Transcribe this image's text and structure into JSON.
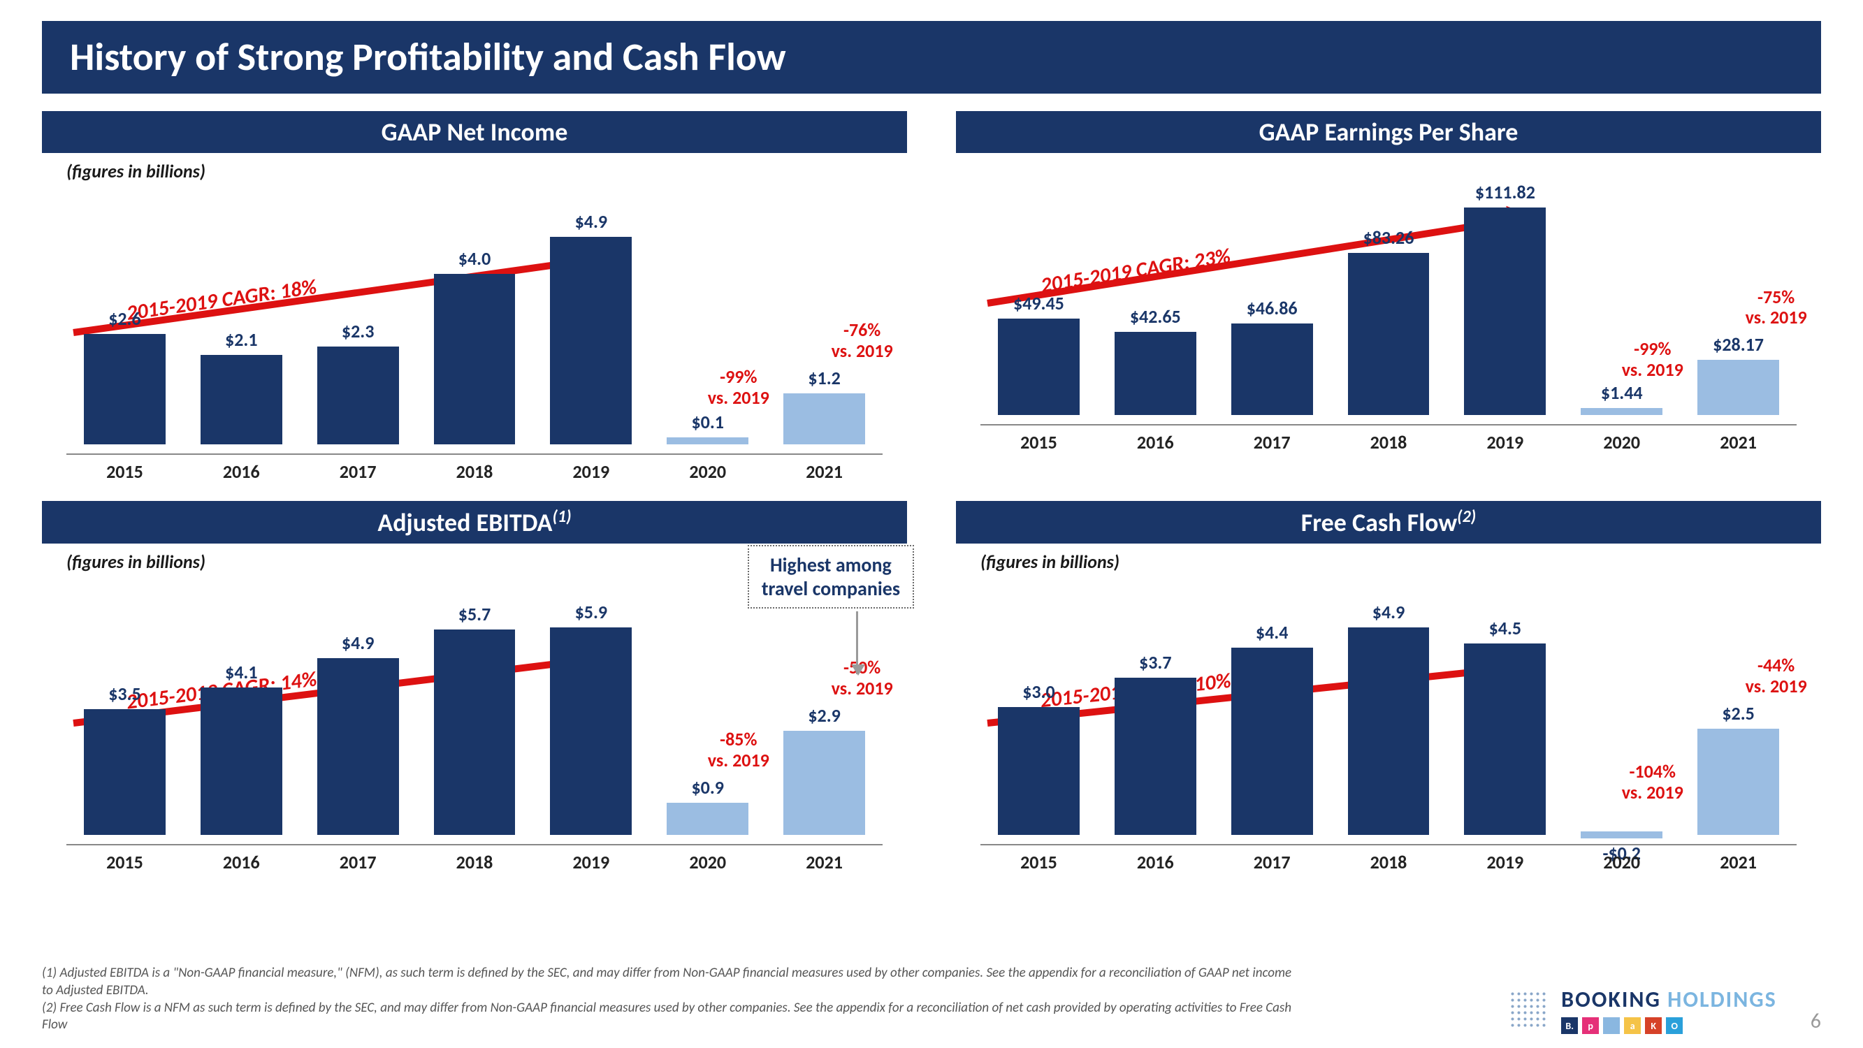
{
  "slide": {
    "title": "History of Strong Profitability and Cash Flow",
    "title_bg": "#1a3668",
    "title_color": "#ffffff",
    "page_number": "6"
  },
  "colors": {
    "bar_dark": "#1a3668",
    "bar_light": "#9bbde2",
    "accent_red": "#dd1111",
    "axis": "#888888",
    "text": "#1a1a1a"
  },
  "charts": [
    {
      "id": "net_income",
      "title": "GAAP Net Income",
      "subcaption": "(figures in billions)",
      "cagr_label": "2015-2019 CAGR: 18%",
      "cagr_angle": -8,
      "y_max": 5.5,
      "categories": [
        "2015",
        "2016",
        "2017",
        "2018",
        "2019",
        "2020",
        "2021"
      ],
      "value_labels": [
        "$2.6",
        "$2.1",
        "$2.3",
        "$4.0",
        "$4.9",
        "$0.1",
        "$1.2"
      ],
      "values": [
        2.6,
        2.1,
        2.3,
        4.0,
        4.9,
        0.1,
        1.2
      ],
      "bar_colors": [
        "#1a3668",
        "#1a3668",
        "#1a3668",
        "#1a3668",
        "#1a3668",
        "#9bbde2",
        "#9bbde2"
      ],
      "annotations": [
        {
          "over_index": 5,
          "lines": [
            "-99%",
            "vs. 2019"
          ]
        },
        {
          "over_index": 6,
          "lines": [
            "-76%",
            "vs. 2019"
          ]
        }
      ]
    },
    {
      "id": "eps",
      "title": "GAAP Earnings Per Share",
      "subcaption": "",
      "cagr_label": "2015-2019 CAGR: 23%",
      "cagr_angle": -9,
      "y_max": 120,
      "categories": [
        "2015",
        "2016",
        "2017",
        "2018",
        "2019",
        "2020",
        "2021"
      ],
      "value_labels": [
        "$49.45",
        "$42.65",
        "$46.86",
        "$83.26",
        "$111.82",
        "$1.44",
        "$28.17"
      ],
      "values": [
        49.45,
        42.65,
        46.86,
        83.26,
        111.82,
        1.44,
        28.17
      ],
      "bar_colors": [
        "#1a3668",
        "#1a3668",
        "#1a3668",
        "#1a3668",
        "#1a3668",
        "#9bbde2",
        "#9bbde2"
      ],
      "annotations": [
        {
          "over_index": 5,
          "lines": [
            "-99%",
            "vs. 2019"
          ]
        },
        {
          "over_index": 6,
          "lines": [
            "-75%",
            "vs. 2019"
          ]
        }
      ]
    },
    {
      "id": "ebitda",
      "title": "Adjusted EBITDA",
      "title_sup": "(1)",
      "subcaption": "(figures in billions)",
      "cagr_label": "2015-2019 CAGR: 14%",
      "cagr_angle": -7,
      "y_max": 6.5,
      "categories": [
        "2015",
        "2016",
        "2017",
        "2018",
        "2019",
        "2020",
        "2021"
      ],
      "value_labels": [
        "$3.5",
        "$4.1",
        "$4.9",
        "$5.7",
        "$5.9",
        "$0.9",
        "$2.9"
      ],
      "values": [
        3.5,
        4.1,
        4.9,
        5.7,
        5.9,
        0.9,
        2.9
      ],
      "bar_colors": [
        "#1a3668",
        "#1a3668",
        "#1a3668",
        "#1a3668",
        "#1a3668",
        "#9bbde2",
        "#9bbde2"
      ],
      "annotations": [
        {
          "over_index": 5,
          "lines": [
            "-85%",
            "vs. 2019"
          ]
        },
        {
          "over_index": 6,
          "lines": [
            "-50%",
            "vs. 2019"
          ]
        }
      ],
      "callout": {
        "text_line1": "Highest among",
        "text_line2": "travel companies",
        "points_to_index": 6
      }
    },
    {
      "id": "fcf",
      "title": "Free Cash Flow",
      "title_sup": "(2)",
      "subcaption": "(figures in billions)",
      "cagr_label": "2015-2019 CAGR: 10%",
      "cagr_angle": -6,
      "y_max": 5.5,
      "categories": [
        "2015",
        "2016",
        "2017",
        "2018",
        "2019",
        "2020",
        "2021"
      ],
      "value_labels": [
        "$3.0",
        "$3.7",
        "$4.4",
        "$4.9",
        "$4.5",
        "-$0.2",
        "$2.5"
      ],
      "values": [
        3.0,
        3.7,
        4.4,
        4.9,
        4.5,
        -0.2,
        2.5
      ],
      "bar_colors": [
        "#1a3668",
        "#1a3668",
        "#1a3668",
        "#1a3668",
        "#1a3668",
        "#9bbde2",
        "#9bbde2"
      ],
      "annotations": [
        {
          "over_index": 5,
          "lines": [
            "-104%",
            "vs. 2019"
          ]
        },
        {
          "over_index": 6,
          "lines": [
            "-44%",
            "vs. 2019"
          ]
        }
      ]
    }
  ],
  "footnotes": [
    "(1) Adjusted EBITDA is a \"Non-GAAP financial measure,\" (NFM), as such term is defined by the SEC, and may differ from Non-GAAP financial measures used by other companies. See the appendix for a reconciliation of GAAP net income to Adjusted EBITDA.",
    "(2) Free Cash Flow is a NFM as such term is defined by the SEC, and may differ from Non-GAAP financial measures used by other companies. See the appendix for a reconciliation of net cash provided by operating activities to Free Cash Flow"
  ],
  "brand": {
    "name_strong": "BOOKING",
    "name_light": " HOLDINGS",
    "icon_colors": [
      "#1a3668",
      "#e53078",
      "#8ab7e0",
      "#f5c347",
      "#d64228",
      "#2aa0da"
    ],
    "icon_letters": [
      "B.",
      "p",
      "",
      "a",
      "K",
      "O"
    ]
  }
}
